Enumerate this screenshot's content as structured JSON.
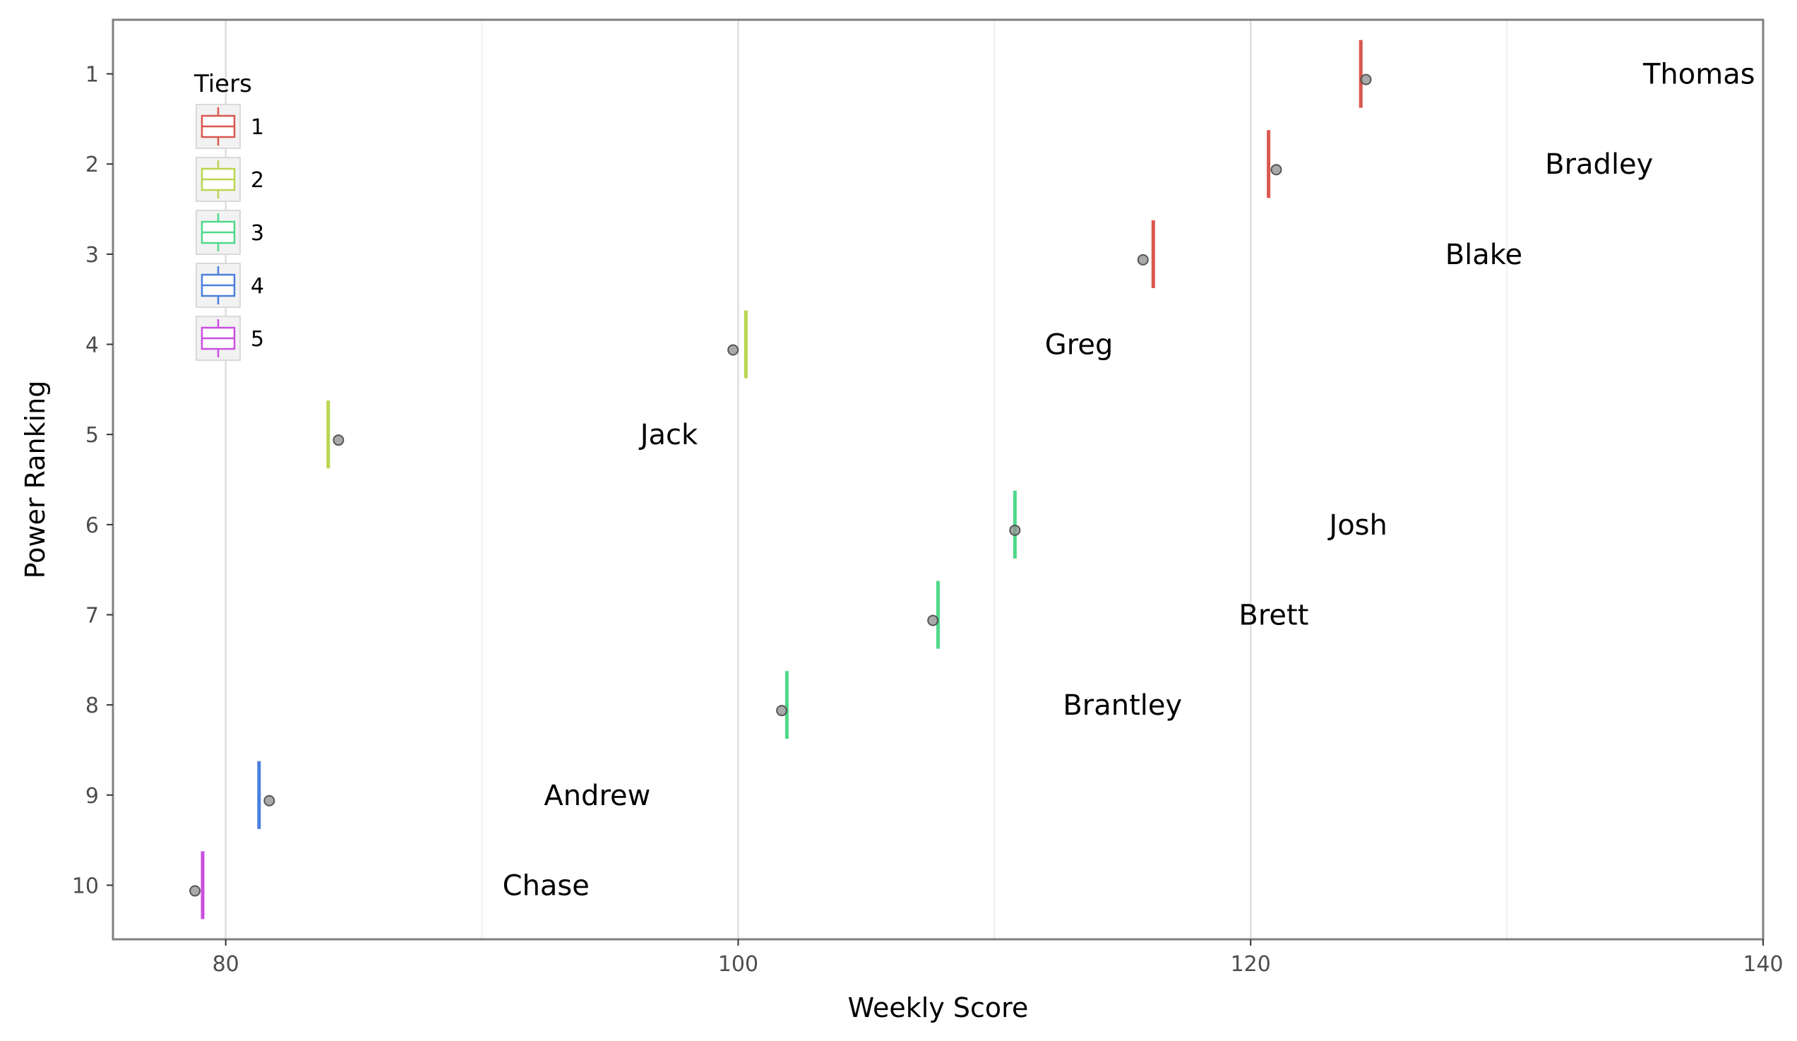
{
  "chart_data": {
    "type": "scatter",
    "xlabel": "Weekly Score",
    "ylabel": "Power Ranking",
    "xlim": [
      75.6,
      140
    ],
    "ylim": [
      0.4,
      10.6
    ],
    "x_ticks": [
      80,
      100,
      120,
      140
    ],
    "x_minor_gridlines": [
      90,
      110,
      130
    ],
    "y_ticks": [
      1,
      2,
      3,
      4,
      5,
      6,
      7,
      8,
      9,
      10
    ],
    "y_reversed": true,
    "grid": "vertical",
    "legend": {
      "title": "Tiers",
      "position": "top-left",
      "entries": [
        {
          "label": "1",
          "color": "#d9574e"
        },
        {
          "label": "2",
          "color": "#b9d64e"
        },
        {
          "label": "3",
          "color": "#4fd98a"
        },
        {
          "label": "4",
          "color": "#4a7fdc"
        },
        {
          "label": "5",
          "color": "#c94fdf"
        }
      ]
    },
    "teams": [
      {
        "name": "Thomas",
        "rank": 1,
        "tier": 1,
        "score": 124.5,
        "mean": 124.3,
        "label_x": 137.5
      },
      {
        "name": "Bradley",
        "rank": 2,
        "tier": 1,
        "score": 121.0,
        "mean": 120.7,
        "label_x": 133.6
      },
      {
        "name": "Blake",
        "rank": 3,
        "tier": 1,
        "score": 115.8,
        "mean": 116.2,
        "label_x": 129.1
      },
      {
        "name": "Greg",
        "rank": 4,
        "tier": 2,
        "score": 99.8,
        "mean": 100.3,
        "label_x": 113.3
      },
      {
        "name": "Jack",
        "rank": 5,
        "tier": 2,
        "score": 84.4,
        "mean": 84.0,
        "label_x": 97.3
      },
      {
        "name": "Josh",
        "rank": 6,
        "tier": 3,
        "score": 110.8,
        "mean": 110.8,
        "label_x": 124.2
      },
      {
        "name": "Brett",
        "rank": 7,
        "tier": 3,
        "score": 107.6,
        "mean": 107.8,
        "label_x": 120.9
      },
      {
        "name": "Brantley",
        "rank": 8,
        "tier": 3,
        "score": 101.7,
        "mean": 101.9,
        "label_x": 115.0
      },
      {
        "name": "Andrew",
        "rank": 9,
        "tier": 4,
        "score": 81.7,
        "mean": 81.3,
        "label_x": 94.5
      },
      {
        "name": "Chase",
        "rank": 10,
        "tier": 5,
        "score": 78.8,
        "mean": 79.1,
        "label_x": 92.5
      }
    ]
  }
}
